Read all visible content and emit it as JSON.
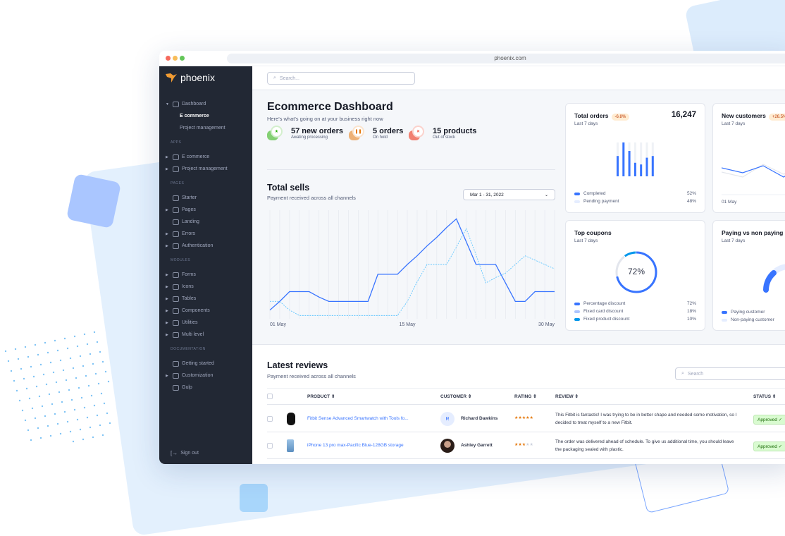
{
  "browser": {
    "url": "phoenix.com"
  },
  "sidebar": {
    "brand": "phoenix",
    "items": [
      {
        "label": "Dashboard",
        "type": "item",
        "caret": "down"
      },
      {
        "label": "E commerce",
        "type": "sub",
        "active": true
      },
      {
        "label": "Project management",
        "type": "sub"
      },
      {
        "label": "APPS",
        "type": "section"
      },
      {
        "label": "E commerce",
        "type": "item",
        "caret": "right"
      },
      {
        "label": "Project management",
        "type": "item",
        "caret": "right"
      },
      {
        "label": "PAGES",
        "type": "section"
      },
      {
        "label": "Starter",
        "type": "item"
      },
      {
        "label": "Pages",
        "type": "item",
        "caret": "right"
      },
      {
        "label": "Landing",
        "type": "item"
      },
      {
        "label": "Errors",
        "type": "item",
        "caret": "right"
      },
      {
        "label": "Authentication",
        "type": "item",
        "caret": "right"
      },
      {
        "label": "MODULES",
        "type": "section"
      },
      {
        "label": "Forms",
        "type": "item",
        "caret": "right"
      },
      {
        "label": "Icons",
        "type": "item",
        "caret": "right"
      },
      {
        "label": "Tables",
        "type": "item",
        "caret": "right"
      },
      {
        "label": "Components",
        "type": "item",
        "caret": "right"
      },
      {
        "label": "Utilities",
        "type": "item",
        "caret": "right"
      },
      {
        "label": "Multi level",
        "type": "item",
        "caret": "right"
      },
      {
        "label": "DOCUMENTATION",
        "type": "section"
      },
      {
        "label": "Getting started",
        "type": "item"
      },
      {
        "label": "Customization",
        "type": "item",
        "caret": "right"
      },
      {
        "label": "Gulp",
        "type": "item"
      }
    ],
    "signout": "Sign out"
  },
  "topbar": {
    "search_placeholder": "Search..."
  },
  "header": {
    "title": "Ecommerce Dashboard",
    "subtitle": "Here's what's going on at your business right now"
  },
  "stats": [
    {
      "value": "57 new orders",
      "label": "Awating processing",
      "color": "#25b003",
      "icon": "star-icon"
    },
    {
      "value": "5 orders",
      "label": "On hold",
      "color": "#e5780b",
      "icon": "pause-icon"
    },
    {
      "value": "15 products",
      "label": "Out of stock",
      "color": "#ec1f00",
      "icon": "x-icon"
    }
  ],
  "total_sells": {
    "title": "Total sells",
    "subtitle": "Payment received across all channels",
    "date_range": "Mar 1 - 31, 2022"
  },
  "chart_data": [
    {
      "type": "line",
      "x_labels": [
        "01 May",
        "15 May",
        "30 May"
      ],
      "x": [
        1,
        2,
        3,
        4,
        5,
        6,
        7,
        8,
        9,
        10,
        11,
        12,
        13,
        14,
        15,
        16,
        17,
        18,
        19,
        20,
        21,
        22,
        23,
        24,
        25,
        26,
        27,
        28,
        29,
        30
      ],
      "series": [
        {
          "style": "solid",
          "color": "#3874ff",
          "values": [
            8,
            16,
            25,
            25,
            25,
            20,
            16,
            16,
            16,
            16,
            16,
            41,
            41,
            41,
            50,
            58,
            67,
            75,
            84,
            92,
            71,
            50,
            50,
            50,
            33,
            16,
            16,
            25,
            25,
            25
          ]
        },
        {
          "style": "dashed",
          "color": "#60c6ff",
          "values": [
            16,
            16,
            8,
            3,
            3,
            3,
            3,
            3,
            3,
            3,
            3,
            3,
            3,
            3,
            16,
            34,
            50,
            50,
            50,
            66,
            83,
            59,
            33,
            38,
            42,
            50,
            58,
            54,
            50,
            46
          ]
        }
      ],
      "grid": "vertical"
    },
    {
      "type": "bar",
      "title": "Total orders",
      "stacked": true,
      "completed": [
        60,
        100,
        75,
        40,
        35,
        55,
        60
      ],
      "pending": [
        40,
        0,
        25,
        60,
        65,
        45,
        40
      ]
    },
    {
      "type": "line",
      "title": "New customers",
      "x_labels": [
        "01 May"
      ],
      "series": [
        {
          "values": [
            40,
            30,
            50,
            20,
            60
          ]
        },
        {
          "values": [
            30,
            20,
            60,
            45,
            50
          ]
        }
      ]
    },
    {
      "type": "pie",
      "title": "Top coupons",
      "values": [
        72,
        18,
        10
      ]
    },
    {
      "type": "pie",
      "title": "Paying vs non paying",
      "values": [
        30,
        70
      ]
    }
  ],
  "cards": {
    "orders": {
      "title": "Total orders",
      "badge": "-6.8%",
      "subtitle": "Last 7 days",
      "value": "16,247",
      "legend": [
        {
          "label": "Completed",
          "value": "52%",
          "color": "#3874ff"
        },
        {
          "label": "Pending payment",
          "value": "48%",
          "color": "#e5edff"
        }
      ]
    },
    "customers": {
      "title": "New customers",
      "badge": "+26.5%",
      "subtitle": "Last 7 days",
      "xlabel": "01 May"
    },
    "coupons": {
      "title": "Top coupons",
      "subtitle": "Last 7 days",
      "center": "72%",
      "legend": [
        {
          "label": "Percentage discount",
          "value": "72%",
          "color": "#3874ff"
        },
        {
          "label": "Fixed card discount",
          "value": "18%",
          "color": "#adc5ff"
        },
        {
          "label": "Fixed product discount",
          "value": "10%",
          "color": "#0097eb"
        }
      ]
    },
    "paying": {
      "title": "Paying vs non paying",
      "subtitle": "Last 7 days",
      "legend": [
        {
          "label": "Paying customer",
          "color": "#3874ff"
        },
        {
          "label": "Non-paying customer",
          "color": "#e5edff"
        }
      ]
    }
  },
  "reviews": {
    "title": "Latest reviews",
    "subtitle": "Payment received across all channels",
    "search_placeholder": "Search",
    "columns": [
      "PRODUCT",
      "CUSTOMER",
      "RATING",
      "REVIEW",
      "STATUS"
    ],
    "rows": [
      {
        "product": "Fitbit Sense Advanced Smartwatch with Tools fo...",
        "customer": "Richard Dawkins",
        "initial": "R",
        "rating": 5,
        "stars": "★★★★★",
        "review": "This Fitbit is fantastic! I was trying to be in better shape and needed some motivation, so I decided to treat myself to a new Fitbit.",
        "status": "Approved ✓"
      },
      {
        "product": "iPhone 13 pro max-Pacific Blue-128GB storage",
        "customer": "Ashley Garrett",
        "rating": 3,
        "stars": "★★★",
        "stars_empty": "★★",
        "review": "The order was delivered ahead of schedule. To give us additional time, you should leave the packaging sealed with plastic.",
        "status": "Approved ✓"
      }
    ]
  }
}
